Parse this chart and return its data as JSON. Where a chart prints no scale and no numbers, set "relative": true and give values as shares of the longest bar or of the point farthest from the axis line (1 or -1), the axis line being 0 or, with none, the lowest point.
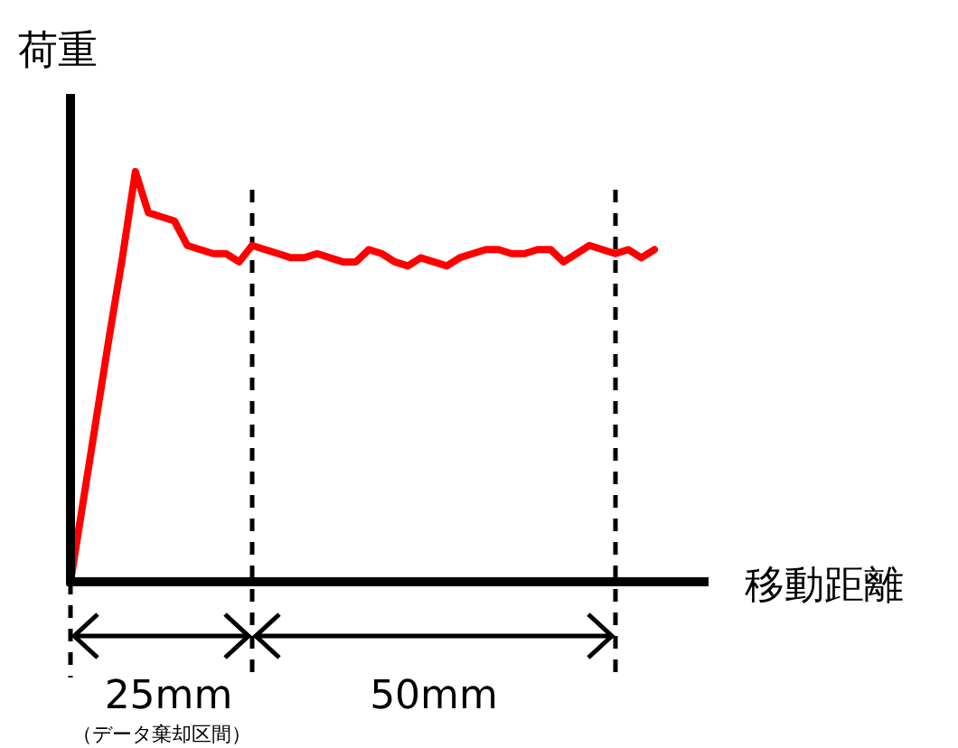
{
  "chart_data": {
    "type": "line",
    "relative": true,
    "xlabel": "移動距離",
    "ylabel": "荷重",
    "categories": [
      null,
      null,
      null,
      null,
      null,
      null,
      null,
      null,
      null,
      null,
      null,
      null,
      null,
      null,
      null,
      null,
      null,
      null,
      null,
      null,
      null,
      null,
      null,
      null,
      null,
      null,
      null,
      null,
      null,
      null,
      null,
      null,
      null,
      null,
      null,
      null,
      null,
      null,
      null,
      null,
      null,
      null,
      null,
      null,
      null,
      null
    ],
    "series": [
      {
        "color": "#ff0000",
        "values": [
          0,
          0.2,
          0.4,
          0.6,
          0.79,
          1,
          0.9,
          0.89,
          0.88,
          0.82,
          0.81,
          0.8,
          0.8,
          0.78,
          0.82,
          0.81,
          0.8,
          0.79,
          0.79,
          0.8,
          0.79,
          0.78,
          0.78,
          0.81,
          0.8,
          0.78,
          0.77,
          0.79,
          0.78,
          0.77,
          0.79,
          0.8,
          0.81,
          0.81,
          0.8,
          0.8,
          0.81,
          0.81,
          0.78,
          0.8,
          0.82,
          0.81,
          0.8,
          0.81,
          0.79,
          0.81
        ]
      }
    ],
    "annotations": [
      "25mm",
      "50mm",
      "（データ棄却区間）"
    ],
    "line_style": "solid"
  }
}
